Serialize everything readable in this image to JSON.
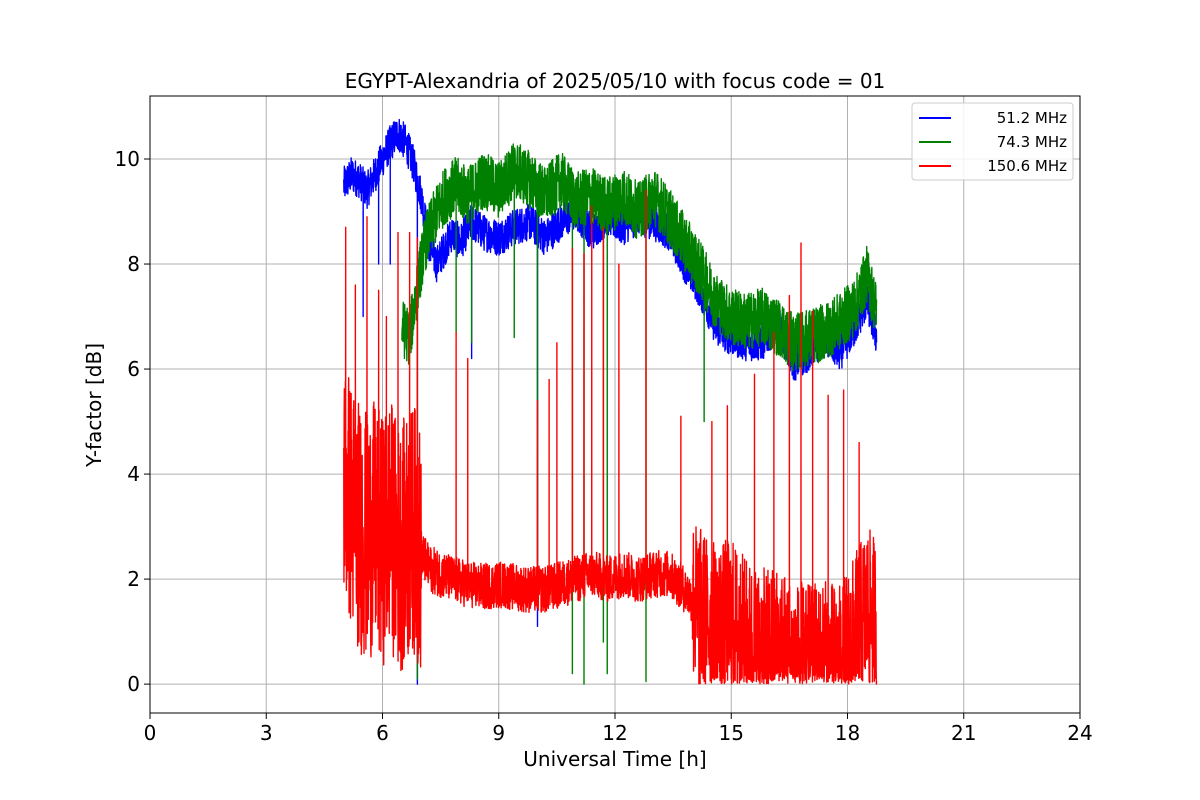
{
  "chart_data": {
    "type": "line",
    "title": "EGYPT-Alexandria of 2025/05/10 with focus code = 01",
    "xlabel": "Universal Time [h]",
    "ylabel": "Y-factor [dB]",
    "xlim": [
      0,
      24
    ],
    "ylim": [
      -0.55,
      11.2
    ],
    "xticks": [
      0,
      3,
      6,
      9,
      12,
      15,
      18,
      21,
      24
    ],
    "yticks": [
      0,
      2,
      4,
      6,
      8,
      10
    ],
    "grid": true,
    "legend_position": "top-right",
    "series": [
      {
        "name": "51.2 MHz",
        "color": "#0000ff",
        "points": [
          [
            5.0,
            9.5
          ],
          [
            5.2,
            9.7
          ],
          [
            5.4,
            9.6
          ],
          [
            5.6,
            9.4
          ],
          [
            5.8,
            9.7
          ],
          [
            6.0,
            10.0
          ],
          [
            6.2,
            10.3
          ],
          [
            6.4,
            10.5
          ],
          [
            6.6,
            10.3
          ],
          [
            6.8,
            9.9
          ],
          [
            7.0,
            9.3
          ],
          [
            7.2,
            8.4
          ],
          [
            7.4,
            8.0
          ],
          [
            7.6,
            8.3
          ],
          [
            7.8,
            8.6
          ],
          [
            8.0,
            8.4
          ],
          [
            8.3,
            8.8
          ],
          [
            8.6,
            8.6
          ],
          [
            9.0,
            8.5
          ],
          [
            9.4,
            8.7
          ],
          [
            9.8,
            8.8
          ],
          [
            10.2,
            8.5
          ],
          [
            10.6,
            8.8
          ],
          [
            11.0,
            9.0
          ],
          [
            11.4,
            8.6
          ],
          [
            11.8,
            8.9
          ],
          [
            12.2,
            8.7
          ],
          [
            12.6,
            8.9
          ],
          [
            13.0,
            8.8
          ],
          [
            13.4,
            8.6
          ],
          [
            13.8,
            8.0
          ],
          [
            14.2,
            7.5
          ],
          [
            14.6,
            6.8
          ],
          [
            15.0,
            6.6
          ],
          [
            15.4,
            6.5
          ],
          [
            15.8,
            6.5
          ],
          [
            16.2,
            6.9
          ],
          [
            16.6,
            6.1
          ],
          [
            17.0,
            6.3
          ],
          [
            17.4,
            6.6
          ],
          [
            17.8,
            6.3
          ],
          [
            18.2,
            6.8
          ],
          [
            18.5,
            7.3
          ],
          [
            18.75,
            6.6
          ]
        ],
        "dips": [
          [
            5.5,
            7.0
          ],
          [
            5.9,
            8.0
          ],
          [
            6.2,
            8.0
          ],
          [
            6.9,
            0.0
          ],
          [
            8.3,
            6.2
          ],
          [
            10.0,
            1.1
          ],
          [
            13.5,
            8.9
          ]
        ]
      },
      {
        "name": "74.3 MHz",
        "color": "#008000",
        "points": [
          [
            6.5,
            6.8
          ],
          [
            6.7,
            6.6
          ],
          [
            6.9,
            7.6
          ],
          [
            7.1,
            8.4
          ],
          [
            7.3,
            8.8
          ],
          [
            7.6,
            9.3
          ],
          [
            7.9,
            9.5
          ],
          [
            8.2,
            9.3
          ],
          [
            8.6,
            9.6
          ],
          [
            9.0,
            9.4
          ],
          [
            9.4,
            9.8
          ],
          [
            9.8,
            9.6
          ],
          [
            10.2,
            9.3
          ],
          [
            10.6,
            9.6
          ],
          [
            11.0,
            9.2
          ],
          [
            11.4,
            9.3
          ],
          [
            11.8,
            9.1
          ],
          [
            12.2,
            9.3
          ],
          [
            12.6,
            9.0
          ],
          [
            13.0,
            9.3
          ],
          [
            13.4,
            8.9
          ],
          [
            13.8,
            8.4
          ],
          [
            14.2,
            7.9
          ],
          [
            14.6,
            7.3
          ],
          [
            15.0,
            7.0
          ],
          [
            15.4,
            6.9
          ],
          [
            15.8,
            7.0
          ],
          [
            16.2,
            6.8
          ],
          [
            16.6,
            6.5
          ],
          [
            17.0,
            6.6
          ],
          [
            17.4,
            6.7
          ],
          [
            17.8,
            6.9
          ],
          [
            18.2,
            7.2
          ],
          [
            18.5,
            7.8
          ],
          [
            18.75,
            7.1
          ]
        ],
        "dips": [
          [
            6.4,
            1.3
          ],
          [
            6.9,
            0.1
          ],
          [
            7.9,
            6.7
          ],
          [
            8.3,
            6.5
          ],
          [
            9.4,
            6.6
          ],
          [
            10.0,
            1.5
          ],
          [
            10.9,
            0.2
          ],
          [
            11.2,
            0.0
          ],
          [
            11.7,
            0.8
          ],
          [
            11.8,
            0.2
          ],
          [
            12.8,
            0.05
          ],
          [
            14.3,
            5.0
          ]
        ]
      },
      {
        "name": "150.6 MHz",
        "color": "#ff0000",
        "points": [
          [
            5.0,
            4.0
          ],
          [
            5.2,
            3.4
          ],
          [
            5.4,
            3.0
          ],
          [
            5.6,
            2.8
          ],
          [
            5.8,
            3.0
          ],
          [
            6.0,
            2.7
          ],
          [
            6.2,
            3.1
          ],
          [
            6.4,
            2.6
          ],
          [
            6.6,
            2.7
          ],
          [
            6.8,
            3.0
          ],
          [
            7.0,
            2.5
          ],
          [
            7.2,
            2.2
          ],
          [
            7.5,
            2.1
          ],
          [
            7.8,
            2.0
          ],
          [
            8.2,
            1.9
          ],
          [
            8.6,
            1.85
          ],
          [
            9.0,
            1.9
          ],
          [
            9.4,
            1.85
          ],
          [
            9.8,
            1.8
          ],
          [
            10.2,
            1.8
          ],
          [
            10.6,
            1.9
          ],
          [
            11.0,
            2.0
          ],
          [
            11.4,
            2.1
          ],
          [
            11.8,
            2.0
          ],
          [
            12.2,
            2.1
          ],
          [
            12.6,
            2.0
          ],
          [
            13.0,
            2.1
          ],
          [
            13.4,
            2.1
          ],
          [
            13.8,
            1.8
          ],
          [
            14.2,
            1.4
          ],
          [
            14.6,
            1.1
          ],
          [
            15.0,
            1.2
          ],
          [
            15.4,
            0.8
          ],
          [
            15.8,
            0.6
          ],
          [
            16.2,
            0.7
          ],
          [
            16.6,
            0.4
          ],
          [
            17.0,
            0.3
          ],
          [
            17.4,
            0.4
          ],
          [
            17.8,
            0.3
          ],
          [
            18.2,
            0.9
          ],
          [
            18.5,
            1.4
          ],
          [
            18.75,
            1.2
          ]
        ],
        "spikes": [
          [
            5.05,
            8.7
          ],
          [
            5.3,
            7.6
          ],
          [
            5.6,
            8.9
          ],
          [
            5.9,
            7.5
          ],
          [
            6.1,
            7.0
          ],
          [
            6.4,
            8.6
          ],
          [
            6.7,
            8.6
          ],
          [
            6.9,
            8.5
          ],
          [
            7.9,
            6.7
          ],
          [
            8.2,
            6.2
          ],
          [
            10.0,
            5.4
          ],
          [
            10.3,
            5.8
          ],
          [
            10.5,
            6.5
          ],
          [
            10.9,
            8.3
          ],
          [
            11.2,
            8.2
          ],
          [
            11.4,
            9.1
          ],
          [
            11.7,
            8.7
          ],
          [
            12.1,
            8.0
          ],
          [
            12.8,
            9.4
          ],
          [
            13.7,
            5.1
          ],
          [
            14.5,
            5.0
          ],
          [
            14.9,
            5.3
          ],
          [
            15.6,
            5.9
          ],
          [
            16.1,
            6.7
          ],
          [
            16.5,
            7.4
          ],
          [
            16.8,
            8.4
          ],
          [
            17.1,
            7.1
          ],
          [
            17.5,
            5.5
          ],
          [
            17.9,
            5.6
          ],
          [
            18.3,
            4.6
          ]
        ]
      }
    ]
  }
}
